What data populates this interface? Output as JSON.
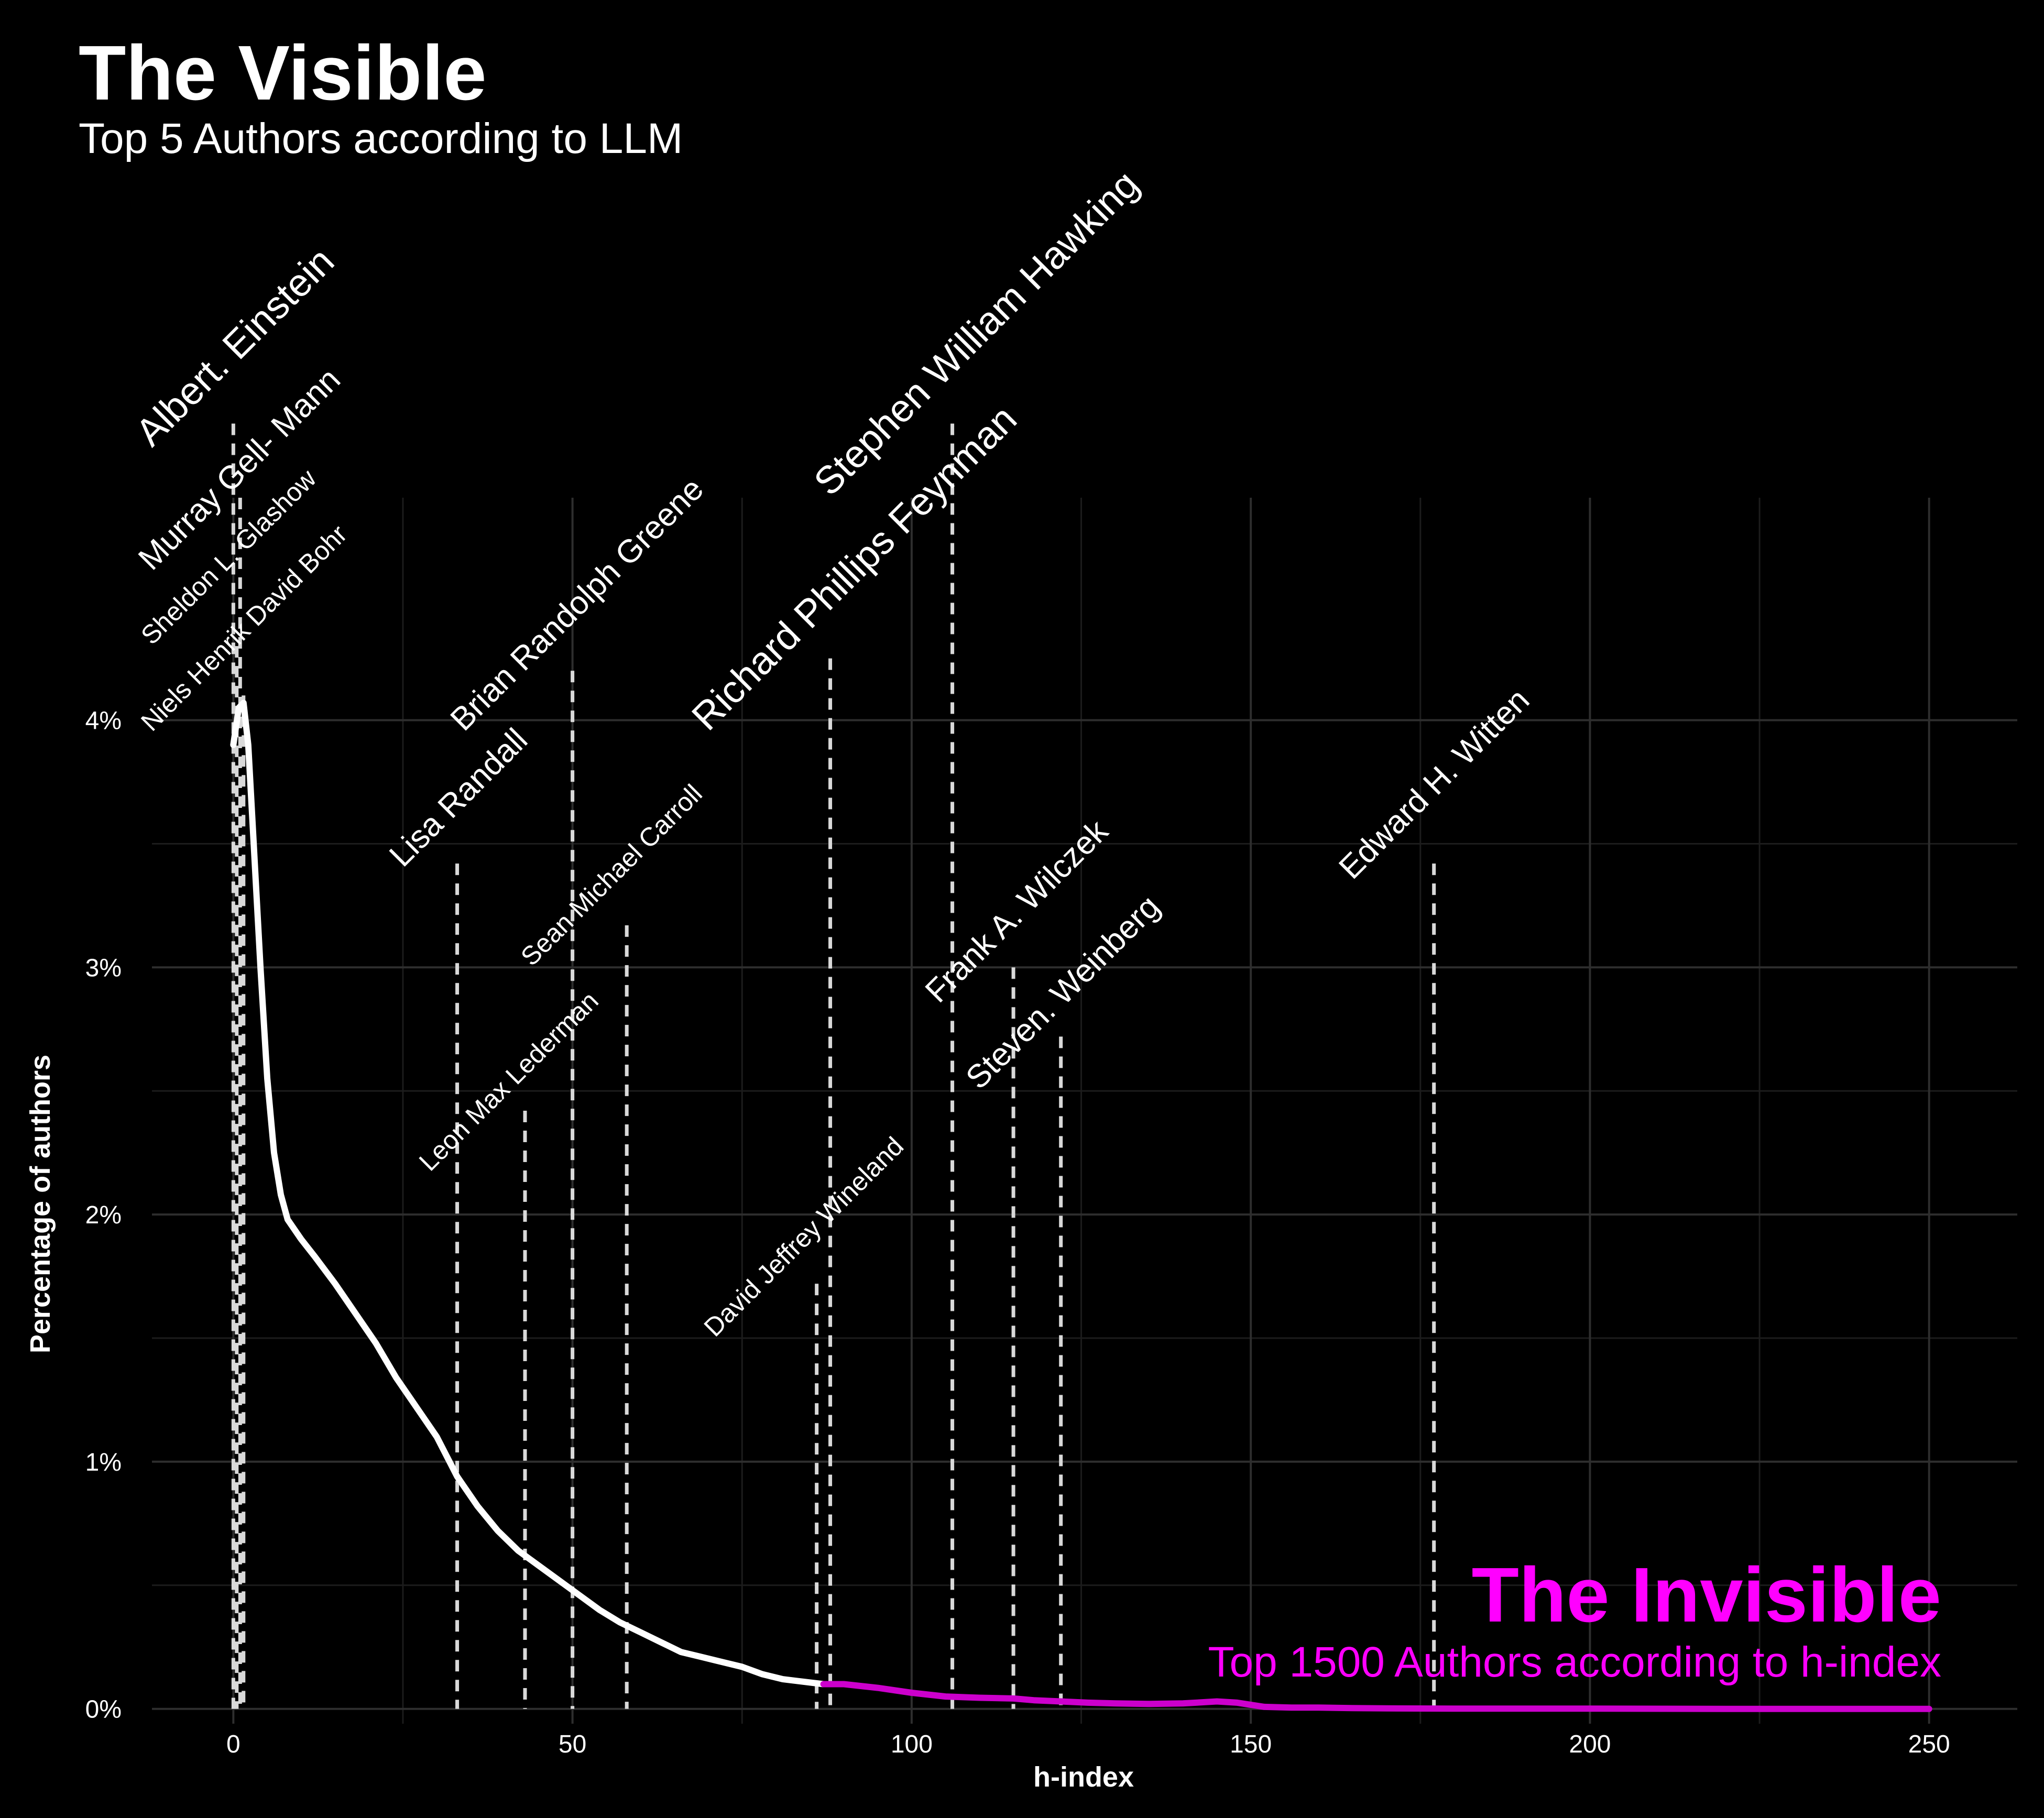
{
  "chart_data": {
    "type": "line",
    "title": "The Visible",
    "subtitle": "Top 5 Authors according to LLM",
    "annotation_title": "The Invisible",
    "annotation_subtitle": "Top 1500 Authors according to h-index",
    "xlabel": "h-index",
    "ylabel": "Percentage of authors",
    "xlim": [
      -12,
      263
    ],
    "ylim": [
      -0.06,
      4.9
    ],
    "x_ticks": [
      0,
      50,
      100,
      150,
      200,
      250
    ],
    "x_tick_labels": [
      "0",
      "50",
      "100",
      "150",
      "200",
      "250"
    ],
    "y_ticks": [
      0,
      1,
      2,
      3,
      4
    ],
    "y_tick_labels": [
      "0%",
      "1%",
      "2%",
      "3%",
      "4%"
    ],
    "grid": true,
    "colors": {
      "background": "#000000",
      "visible_line": "#ffffff",
      "invisible_line": "#cc00cc",
      "invisible_text": "#ff00ff",
      "marker_line": "#d9d9d9",
      "grid": "#2e2e2e",
      "text": "#ffffff"
    },
    "series": [
      {
        "x": [
          0,
          0.8,
          1.5,
          2.2,
          3,
          4,
          5,
          6,
          7,
          8,
          10,
          12,
          15,
          18,
          21,
          24,
          27,
          30,
          33,
          36,
          39,
          42,
          45,
          48,
          51,
          54,
          57,
          60,
          63,
          66,
          69,
          72,
          75,
          78,
          81,
          84,
          87
        ],
        "values": [
          3.9,
          4.05,
          4.07,
          3.9,
          3.5,
          3.0,
          2.55,
          2.25,
          2.08,
          1.98,
          1.9,
          1.83,
          1.72,
          1.6,
          1.48,
          1.34,
          1.22,
          1.1,
          0.94,
          0.82,
          0.72,
          0.64,
          0.58,
          0.52,
          0.46,
          0.4,
          0.35,
          0.31,
          0.27,
          0.23,
          0.21,
          0.19,
          0.17,
          0.14,
          0.12,
          0.11,
          0.1
        ]
      },
      {
        "x": [
          87,
          90,
          95,
          100,
          105,
          110,
          115,
          118,
          122,
          126,
          130,
          135,
          140,
          145,
          148,
          152,
          156,
          160,
          165,
          170,
          180,
          200,
          220,
          250
        ],
        "values": [
          0.1,
          0.1,
          0.085,
          0.065,
          0.05,
          0.045,
          0.042,
          0.035,
          0.03,
          0.025,
          0.022,
          0.02,
          0.022,
          0.03,
          0.025,
          0.008,
          0.005,
          0.005,
          0.003,
          0.002,
          0.001,
          0.001,
          0.0,
          0.0
        ]
      }
    ],
    "authors": [
      {
        "name": "Albert. Einstein",
        "x": 0,
        "line_top": 5.2,
        "label_x": -12,
        "label_y": 5.1,
        "size": "xl"
      },
      {
        "name": "Murray Gell- Mann",
        "x": 1,
        "line_top": 4.9,
        "label_x": -12,
        "label_y": 4.6,
        "size": "l"
      },
      {
        "name": "Sheldon L. Glashow",
        "x": 0.5,
        "line_top": 4.3,
        "label_x": -12,
        "label_y": 4.3,
        "size": "m"
      },
      {
        "name": "Niels Henrik David Bohr",
        "x": 1.5,
        "line_top": 4.1,
        "label_x": -12,
        "label_y": 3.95,
        "size": "m"
      },
      {
        "name": "Brian Randolph Greene",
        "x": 50,
        "line_top": 4.2,
        "label_x": 34,
        "label_y": 3.95,
        "size": "l"
      },
      {
        "name": "Lisa Randall",
        "x": 33,
        "line_top": 3.42,
        "label_x": 25,
        "label_y": 3.4,
        "size": "l"
      },
      {
        "name": "Sean Michael Carroll",
        "x": 58,
        "line_top": 3.17,
        "label_x": 44,
        "label_y": 3.0,
        "size": "m"
      },
      {
        "name": "Leon Max Lederman",
        "x": 43,
        "line_top": 2.42,
        "label_x": 29,
        "label_y": 2.17,
        "size": "m"
      },
      {
        "name": "Richard Phillips Feynman",
        "x": 88,
        "line_top": 4.25,
        "label_x": 70,
        "label_y": 3.95,
        "size": "xl"
      },
      {
        "name": "Stephen William Hawking",
        "x": 106,
        "line_top": 5.2,
        "label_x": 88,
        "label_y": 4.9,
        "size": "xl"
      },
      {
        "name": "David Jeffrey Wineland",
        "x": 86,
        "line_top": 1.72,
        "label_x": 71,
        "label_y": 1.5,
        "size": "m"
      },
      {
        "name": "Frank A. Wilczek",
        "x": 115,
        "line_top": 3.0,
        "label_x": 104,
        "label_y": 2.85,
        "size": "l"
      },
      {
        "name": "Steven. Weinberg",
        "x": 122,
        "line_top": 2.72,
        "label_x": 110,
        "label_y": 2.5,
        "size": "l"
      },
      {
        "name": "Edward H. Witten",
        "x": 177,
        "line_top": 3.42,
        "label_x": 165,
        "label_y": 3.35,
        "size": "l"
      }
    ]
  }
}
